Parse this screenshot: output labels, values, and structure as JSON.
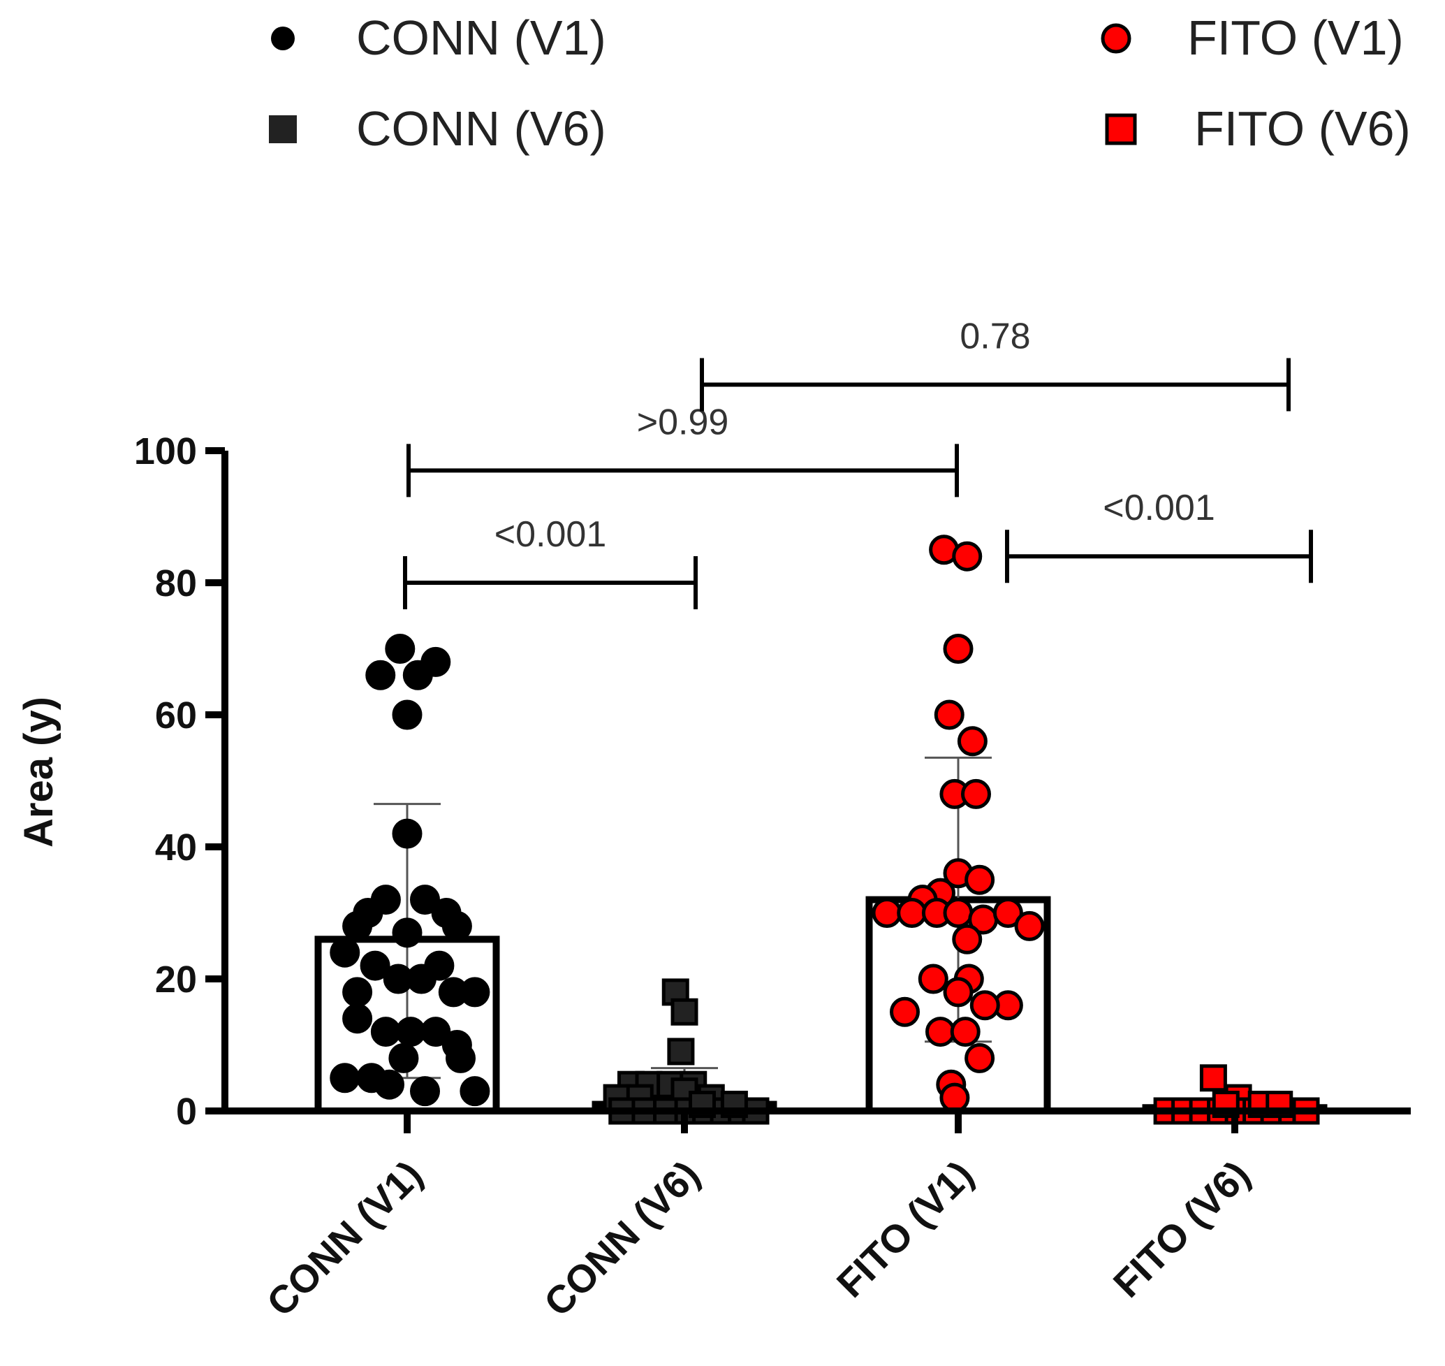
{
  "chart_data": {
    "type": "bar",
    "ylabel": "Area (y)",
    "xlabel": "",
    "ylim": [
      0,
      100
    ],
    "yticks": [
      0,
      20,
      40,
      60,
      80,
      100
    ],
    "categories": [
      "CONN (V1)",
      "CONN (V6)",
      "FITO (V1)",
      "FITO (V6)"
    ],
    "legend": [
      {
        "label": "CONN (V1)",
        "marker": "circle",
        "color": "#000000"
      },
      {
        "label": "CONN (V6)",
        "marker": "square",
        "color": "#222222"
      },
      {
        "label": "FITO (V1)",
        "marker": "circle",
        "color": "#ff0000"
      },
      {
        "label": "FITO (V6)",
        "marker": "square",
        "color": "#ff0000"
      }
    ],
    "series": [
      {
        "name": "CONN (V1)",
        "marker": "circle",
        "color": "#000000",
        "bar_fill": "#ffffff",
        "mean": 26,
        "err_low": 5,
        "err_high": 46.5,
        "points": [
          {
            "dx": -0.04,
            "y": 70
          },
          {
            "dx": -0.15,
            "y": 66
          },
          {
            "dx": 0.06,
            "y": 66
          },
          {
            "dx": 0.16,
            "y": 68
          },
          {
            "dx": 0.0,
            "y": 60
          },
          {
            "dx": 0.0,
            "y": 42
          },
          {
            "dx": -0.12,
            "y": 32
          },
          {
            "dx": 0.1,
            "y": 32
          },
          {
            "dx": -0.22,
            "y": 30
          },
          {
            "dx": 0.22,
            "y": 30
          },
          {
            "dx": -0.28,
            "y": 28
          },
          {
            "dx": 0.28,
            "y": 28
          },
          {
            "dx": -0.35,
            "y": 24
          },
          {
            "dx": 0.0,
            "y": 27
          },
          {
            "dx": -0.18,
            "y": 22
          },
          {
            "dx": 0.18,
            "y": 22
          },
          {
            "dx": -0.05,
            "y": 20
          },
          {
            "dx": 0.08,
            "y": 20
          },
          {
            "dx": -0.28,
            "y": 18
          },
          {
            "dx": 0.26,
            "y": 18
          },
          {
            "dx": 0.38,
            "y": 18
          },
          {
            "dx": -0.28,
            "y": 14
          },
          {
            "dx": -0.12,
            "y": 12
          },
          {
            "dx": 0.02,
            "y": 12
          },
          {
            "dx": 0.16,
            "y": 12
          },
          {
            "dx": 0.28,
            "y": 10
          },
          {
            "dx": -0.02,
            "y": 8
          },
          {
            "dx": 0.3,
            "y": 8
          },
          {
            "dx": -0.35,
            "y": 5
          },
          {
            "dx": -0.2,
            "y": 5
          },
          {
            "dx": -0.1,
            "y": 4
          },
          {
            "dx": 0.1,
            "y": 3
          },
          {
            "dx": 0.38,
            "y": 3
          }
        ]
      },
      {
        "name": "CONN (V6)",
        "marker": "square",
        "color": "#222222",
        "bar_fill": "#ffffff",
        "mean": 1,
        "err_low": 0,
        "err_high": 6.5,
        "points": [
          {
            "dx": -0.05,
            "y": 18
          },
          {
            "dx": 0.0,
            "y": 15
          },
          {
            "dx": -0.02,
            "y": 9
          },
          {
            "dx": -0.3,
            "y": 4
          },
          {
            "dx": -0.2,
            "y": 4
          },
          {
            "dx": -0.08,
            "y": 4
          },
          {
            "dx": 0.05,
            "y": 4
          },
          {
            "dx": -0.38,
            "y": 2
          },
          {
            "dx": -0.25,
            "y": 2
          },
          {
            "dx": 0.0,
            "y": 3
          },
          {
            "dx": 0.15,
            "y": 2
          },
          {
            "dx": -0.35,
            "y": 0
          },
          {
            "dx": -0.22,
            "y": 0
          },
          {
            "dx": -0.1,
            "y": 0
          },
          {
            "dx": 0.02,
            "y": 0
          },
          {
            "dx": 0.12,
            "y": 0
          },
          {
            "dx": 0.22,
            "y": 0
          },
          {
            "dx": 0.32,
            "y": 0
          },
          {
            "dx": 0.4,
            "y": 0
          },
          {
            "dx": 0.1,
            "y": 1
          },
          {
            "dx": 0.28,
            "y": 1
          }
        ]
      },
      {
        "name": "FITO (V1)",
        "marker": "circle",
        "color": "#ff0000",
        "bar_fill": "#ffffff",
        "mean": 32,
        "err_low": 10.5,
        "err_high": 53.5,
        "points": [
          {
            "dx": -0.08,
            "y": 85
          },
          {
            "dx": 0.05,
            "y": 84
          },
          {
            "dx": 0.0,
            "y": 70
          },
          {
            "dx": -0.05,
            "y": 60
          },
          {
            "dx": 0.08,
            "y": 56
          },
          {
            "dx": -0.02,
            "y": 48
          },
          {
            "dx": 0.1,
            "y": 48
          },
          {
            "dx": 0.0,
            "y": 36
          },
          {
            "dx": 0.12,
            "y": 35
          },
          {
            "dx": -0.1,
            "y": 33
          },
          {
            "dx": -0.2,
            "y": 32
          },
          {
            "dx": -0.4,
            "y": 30
          },
          {
            "dx": -0.26,
            "y": 30
          },
          {
            "dx": -0.12,
            "y": 30
          },
          {
            "dx": 0.0,
            "y": 30
          },
          {
            "dx": 0.14,
            "y": 29
          },
          {
            "dx": 0.28,
            "y": 30
          },
          {
            "dx": 0.4,
            "y": 28
          },
          {
            "dx": 0.05,
            "y": 26
          },
          {
            "dx": -0.14,
            "y": 20
          },
          {
            "dx": 0.06,
            "y": 20
          },
          {
            "dx": 0.0,
            "y": 18
          },
          {
            "dx": -0.3,
            "y": 15
          },
          {
            "dx": 0.28,
            "y": 16
          },
          {
            "dx": 0.15,
            "y": 16
          },
          {
            "dx": -0.1,
            "y": 12
          },
          {
            "dx": 0.04,
            "y": 12
          },
          {
            "dx": 0.12,
            "y": 8
          },
          {
            "dx": -0.04,
            "y": 4
          },
          {
            "dx": -0.02,
            "y": 2
          }
        ]
      },
      {
        "name": "FITO (V6)",
        "marker": "square",
        "color": "#ff0000",
        "bar_fill": "#ffffff",
        "mean": 0.5,
        "err_low": 0,
        "err_high": 1,
        "points": [
          {
            "dx": -0.12,
            "y": 5
          },
          {
            "dx": 0.02,
            "y": 2
          },
          {
            "dx": -0.38,
            "y": 0
          },
          {
            "dx": -0.28,
            "y": 0
          },
          {
            "dx": -0.18,
            "y": 0
          },
          {
            "dx": -0.08,
            "y": 0
          },
          {
            "dx": 0.02,
            "y": 0
          },
          {
            "dx": 0.12,
            "y": 0
          },
          {
            "dx": 0.22,
            "y": 0
          },
          {
            "dx": 0.32,
            "y": 0
          },
          {
            "dx": 0.4,
            "y": 0
          },
          {
            "dx": -0.05,
            "y": 1
          },
          {
            "dx": 0.15,
            "y": 1
          },
          {
            "dx": 0.25,
            "y": 1
          }
        ]
      }
    ],
    "comparisons": [
      {
        "from": 0,
        "to": 1,
        "label": "<0.001",
        "level": 80
      },
      {
        "from": 0,
        "to": 2,
        "label": ">0.99",
        "level": 97
      },
      {
        "from": 1,
        "to": 3,
        "label": "0.78",
        "level": 110
      },
      {
        "from": 2,
        "to": 3,
        "label": "<0.001",
        "level": 84
      }
    ]
  }
}
